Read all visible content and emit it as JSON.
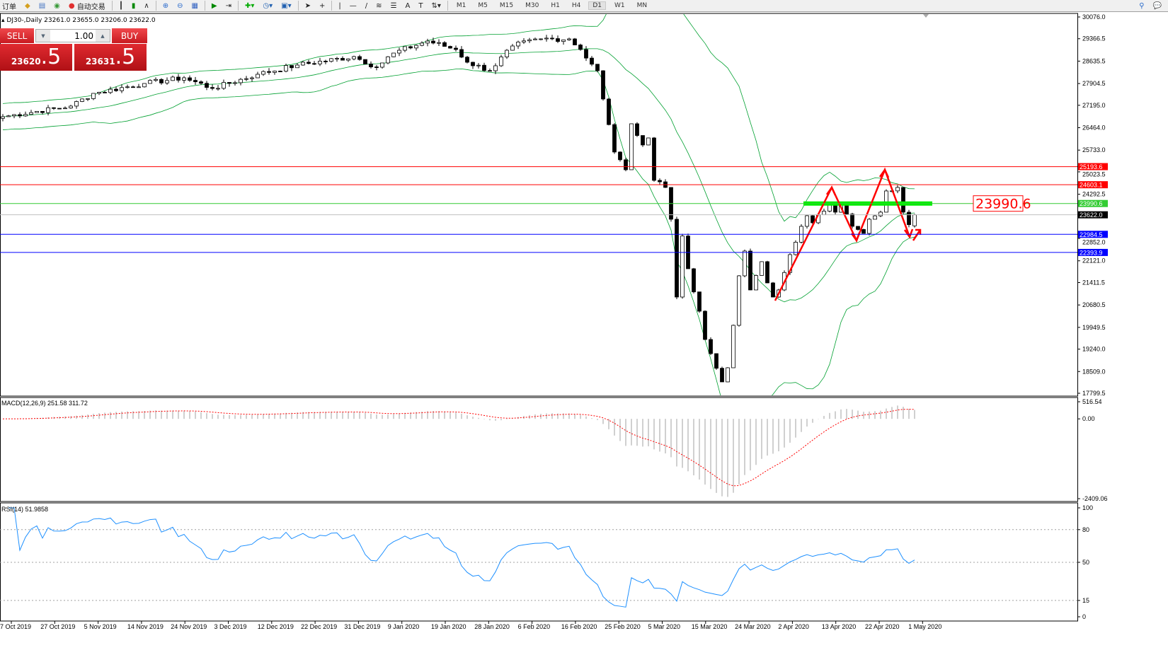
{
  "toolbar": {
    "new_order": "订单",
    "auto_trading": "自动交易",
    "timeframes": [
      "M1",
      "M5",
      "M15",
      "M30",
      "H1",
      "H4",
      "D1",
      "W1",
      "MN"
    ],
    "selected_timeframe": "D1",
    "icons": [
      "gold-bar-icon",
      "market-watch-icon",
      "signal-icon",
      "auto-trading-icon",
      "bar-chart-icon",
      "candlestick-icon",
      "line-chart-icon",
      "zoom-in-icon",
      "zoom-out-icon",
      "tile-windows-icon",
      "auto-scroll-icon",
      "chart-shift-icon",
      "indicators-icon",
      "periods-icon",
      "templates-icon",
      "cursor-icon",
      "crosshair-icon",
      "vertical-line-icon",
      "horizontal-line-icon",
      "trendline-icon",
      "fibonacci-icon",
      "channel-icon",
      "text-icon",
      "text-label-icon",
      "arrows-icon"
    ],
    "right_icons": [
      "search-icon",
      "chat-icon"
    ]
  },
  "symbol_info": "DJ30-,Daily  23261.0 23655.0 23206.0 23622.0",
  "trade_panel": {
    "sell_label": "SELL",
    "buy_label": "BUY",
    "lot": "1.00",
    "sell_price_main": "23620",
    "sell_price_frac": ".5",
    "buy_price_main": "23631",
    "buy_price_frac": ".5"
  },
  "macd_label": "MACD(12,26,9) 251.58 311.72",
  "rsi_label": "RSI(14) 51.9858",
  "annotation_label": "23990.6",
  "colors": {
    "up_line": "#ff0000",
    "support": "#0000ff",
    "green": "#00c000",
    "band": "#00a030",
    "rsi": "#1e90ff",
    "macd_signal": "#ff0000",
    "arrow": "#ff0000"
  },
  "chart_data": {
    "type": "candlestick",
    "ylim": [
      17799.5,
      30076.0
    ],
    "price_ticks": [
      "30076.0",
      "29366.5",
      "28635.5",
      "27904.5",
      "27195.0",
      "26464.0",
      "25733.0",
      "25023.5",
      "24292.5",
      "22852.0",
      "22121.0",
      "21411.5",
      "20680.5",
      "19949.5",
      "19240.0",
      "18509.0",
      "17799.5"
    ],
    "date_ticks": [
      "7 Oct 2019",
      "27 Oct 2019",
      "5 Nov 2019",
      "14 Nov 2019",
      "24 Nov 2019",
      "3 Dec 2019",
      "12 Dec 2019",
      "22 Dec 2019",
      "31 Dec 2019",
      "9 Jan 2020",
      "19 Jan 2020",
      "28 Jan 2020",
      "6 Feb 2020",
      "16 Feb 2020",
      "25 Feb 2020",
      "5 Mar 2020",
      "15 Mar 2020",
      "24 Mar 2020",
      "2 Apr 2020",
      "13 Apr 2020",
      "22 Apr 2020",
      "1 May 2020"
    ],
    "close_by_bar": [
      [
        0,
        26823
      ],
      [
        12,
        27169
      ],
      [
        16,
        27584
      ],
      [
        25,
        27907
      ],
      [
        32,
        28092
      ],
      [
        37,
        27745
      ],
      [
        45,
        28207
      ],
      [
        52,
        28507
      ],
      [
        62,
        28784
      ],
      [
        66,
        28438
      ],
      [
        69,
        28899
      ],
      [
        75,
        29291
      ],
      [
        80,
        29015
      ],
      [
        82,
        28599
      ],
      [
        86,
        28322
      ],
      [
        90,
        29130
      ],
      [
        95,
        29361
      ],
      [
        100,
        29361
      ],
      [
        102,
        29015
      ],
      [
        105,
        28322
      ],
      [
        106,
        27400
      ],
      [
        108,
        25670
      ],
      [
        110,
        25092
      ],
      [
        111,
        26592
      ],
      [
        113,
        25900
      ],
      [
        114,
        26130
      ],
      [
        115,
        24746
      ],
      [
        117,
        24515
      ],
      [
        118,
        23477
      ],
      [
        119,
        20939
      ],
      [
        120,
        22930
      ],
      [
        121,
        21862
      ],
      [
        123,
        20477
      ],
      [
        124,
        19554
      ],
      [
        125,
        19093
      ],
      [
        127,
        18170
      ],
      [
        128,
        18631
      ],
      [
        129,
        20016
      ],
      [
        130,
        21631
      ],
      [
        131,
        22439
      ],
      [
        132,
        21170
      ],
      [
        134,
        22093
      ],
      [
        135,
        21400
      ],
      [
        136,
        20939
      ],
      [
        137,
        21170
      ],
      [
        139,
        22323
      ],
      [
        141,
        23246
      ],
      [
        142,
        23592
      ],
      [
        143,
        23362
      ],
      [
        146,
        23939
      ],
      [
        147,
        23708
      ],
      [
        148,
        23939
      ],
      [
        150,
        23246
      ],
      [
        152,
        23015
      ],
      [
        153,
        23477
      ],
      [
        155,
        23708
      ],
      [
        156,
        24400
      ],
      [
        158,
        24515
      ],
      [
        159,
        23708
      ],
      [
        160,
        23300
      ],
      [
        161,
        23622
      ]
    ],
    "last_ohlc": {
      "open": 23261.0,
      "high": 23655.0,
      "low": 23206.0,
      "close": 23622.0
    },
    "horizontal_lines": [
      {
        "price": 25193.6,
        "label": "25193.6",
        "color": "#ff0000"
      },
      {
        "price": 24603.1,
        "label": "24603.1",
        "color": "#ff0000"
      },
      {
        "price": 23990.6,
        "label": "23990.6",
        "color": "#33cc33"
      },
      {
        "price": 23622.0,
        "label": "23622.0",
        "color": "#000000"
      },
      {
        "price": 22984.5,
        "label": "22984.5",
        "color": "#0000ff"
      },
      {
        "price": 22393.9,
        "label": "22393.9",
        "color": "#0000ff"
      }
    ],
    "macd": {
      "params": [
        12,
        26,
        9
      ],
      "main": 251.58,
      "signal": 311.72,
      "ticks": [
        "516.54",
        "0.00",
        "-2409.06"
      ],
      "ylim": [
        -2409.06,
        516.54
      ]
    },
    "rsi": {
      "period": 14,
      "value": 51.9858,
      "ticks": [
        "100",
        "80",
        "50",
        "15",
        "0"
      ],
      "levels": [
        80,
        50,
        15
      ]
    },
    "bollinger": {
      "period": 20,
      "deviation": 2
    }
  }
}
